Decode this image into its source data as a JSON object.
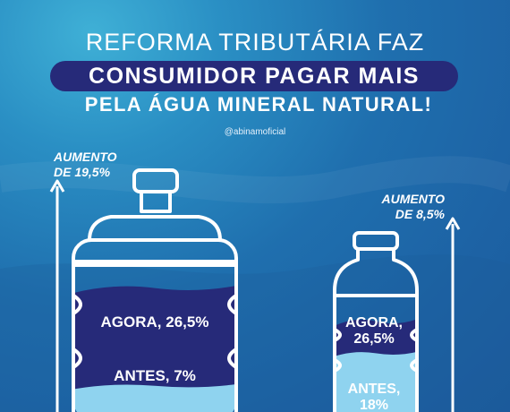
{
  "header": {
    "line1": "REFORMA TRIBUTÁRIA FAZ",
    "line2": "CONSUMIDOR PAGAR MAIS",
    "line3": "PELA ÁGUA MINERAL NATURAL!",
    "handle": "@abinamoficial"
  },
  "colors": {
    "background": "#1f6fae",
    "pill": "#262a79",
    "now_fill": "#262a79",
    "before_fill": "#8fd3ef",
    "outline": "#ffffff"
  },
  "chart_data": {
    "type": "bar",
    "categories": [
      "Garrafão",
      "Garrafa"
    ],
    "series": [
      {
        "name": "ANTES",
        "values": [
          7,
          18
        ]
      },
      {
        "name": "AGORA",
        "values": [
          26.5,
          26.5
        ]
      }
    ],
    "increase": [
      19.5,
      8.5
    ],
    "labels": {
      "increase_left": [
        "AUMENTO",
        "DE 19,5%"
      ],
      "increase_right": [
        "AUMENTO",
        "DE 8,5%"
      ],
      "jug_now": "AGORA, 26,5%",
      "jug_before": "ANTES, 7%",
      "bottle_now": [
        "AGORA,",
        "26,5%"
      ],
      "bottle_before": [
        "ANTES,",
        "18%"
      ]
    }
  }
}
